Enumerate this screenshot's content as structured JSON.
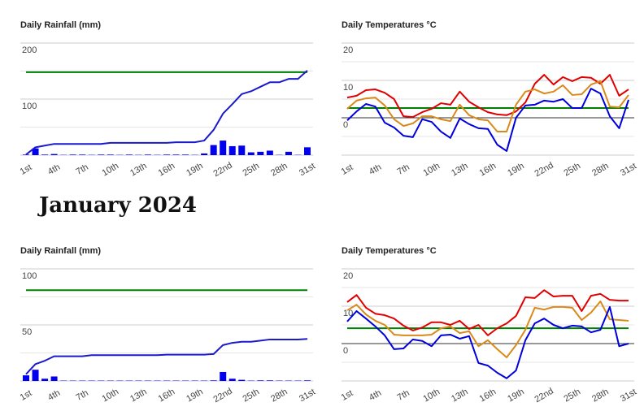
{
  "heading": "January 2024",
  "chart_data": [
    {
      "type": "bar-line",
      "title": "Daily Rainfall (mm)",
      "categories": [
        "1st",
        null,
        null,
        "4th",
        null,
        null,
        "7th",
        null,
        null,
        "10th",
        null,
        null,
        "13th",
        null,
        null,
        "16th",
        null,
        null,
        "19th",
        null,
        null,
        "22nd",
        null,
        null,
        "25th",
        null,
        null,
        "28th",
        null,
        null,
        "31st"
      ],
      "series": [
        {
          "type": "bar",
          "color": "#0000ee",
          "values": [
            1,
            12,
            1,
            2,
            0.5,
            1,
            1,
            0.5,
            1,
            1,
            0.5,
            1,
            0.5,
            1,
            0.5,
            1,
            1,
            1,
            0.5,
            3,
            18,
            26,
            16,
            17,
            5,
            6,
            8,
            0.5,
            6,
            0.5,
            14
          ]
        },
        {
          "type": "line",
          "color": "#1a1acc",
          "values": [
            1,
            14,
            17,
            20,
            20,
            20,
            20,
            20,
            20,
            22,
            22,
            22,
            22,
            22,
            22,
            22,
            23,
            23,
            23,
            26,
            45,
            74,
            91,
            109,
            114,
            122,
            130,
            130,
            136,
            136,
            151
          ]
        }
      ],
      "threshold": {
        "value": 148,
        "color": "#008000"
      },
      "ylim": [
        0,
        200
      ],
      "yticks": [
        100,
        200
      ],
      "minor_yticks": [
        50,
        150
      ],
      "grid": true
    },
    {
      "type": "line",
      "title": "Daily Temperatures °C",
      "categories": [
        "1st",
        null,
        null,
        "4th",
        null,
        null,
        "7th",
        null,
        null,
        "10th",
        null,
        null,
        "13th",
        null,
        null,
        "16th",
        null,
        null,
        "19th",
        null,
        null,
        "22nd",
        null,
        null,
        "25th",
        null,
        null,
        "28th",
        null,
        null,
        "31st"
      ],
      "series": [
        {
          "color": "#e00000",
          "values": [
            5.4,
            5.9,
            7.4,
            7.6,
            6.7,
            5.0,
            0.4,
            0.2,
            1.5,
            2.4,
            3.9,
            3.5,
            7.0,
            4.3,
            2.8,
            1.5,
            0.9,
            0.7,
            1.7,
            4.1,
            9.1,
            11.5,
            8.9,
            10.9,
            9.8,
            10.9,
            10.7,
            9.1,
            11.5,
            5.9,
            7.6
          ]
        },
        {
          "color": "#d98a1a",
          "values": [
            2.4,
            4.6,
            5.2,
            5.4,
            3.3,
            -0.4,
            -2.2,
            -1.5,
            0.4,
            0.4,
            -0.4,
            -0.9,
            3.5,
            0.7,
            -0.4,
            -0.7,
            -3.7,
            -3.7,
            3.5,
            7.0,
            7.6,
            6.5,
            7.0,
            8.7,
            6.1,
            6.3,
            8.9,
            9.8,
            3.0,
            2.8,
            6.1
          ]
        },
        {
          "color": "#0000dd",
          "values": [
            -0.7,
            1.7,
            3.7,
            3.0,
            -1.3,
            -2.6,
            -4.8,
            -5.2,
            -0.4,
            -1.1,
            -3.7,
            -5.4,
            -0.2,
            -1.7,
            -2.8,
            -3.0,
            -7.2,
            -8.9,
            0,
            3.3,
            3.5,
            4.6,
            4.3,
            5.0,
            2.6,
            2.6,
            7.8,
            6.5,
            0.4,
            -2.8,
            4.8
          ]
        }
      ],
      "threshold": {
        "value": 2.6,
        "color": "#008000"
      },
      "ylim": [
        -10,
        20
      ],
      "yticks": [
        0,
        10,
        20
      ],
      "minor_yticks": [
        -5,
        5,
        15
      ],
      "grid": true
    },
    {
      "type": "bar-line",
      "title": "Daily Rainfall (mm)",
      "categories": [
        "1st",
        null,
        null,
        "4th",
        null,
        null,
        "7th",
        null,
        null,
        "10th",
        null,
        null,
        "13th",
        null,
        null,
        "16th",
        null,
        null,
        "19th",
        null,
        null,
        "22nd",
        null,
        null,
        "25th",
        null,
        null,
        "28th",
        null,
        null,
        "31st"
      ],
      "series": [
        {
          "type": "bar",
          "color": "#0000ee",
          "values": [
            5,
            10,
            2,
            4,
            0.3,
            0.3,
            0.3,
            0.3,
            0.3,
            0.3,
            0.3,
            0.3,
            0.3,
            0.3,
            0.3,
            0.3,
            0.3,
            0.3,
            0.3,
            0.3,
            0.5,
            8,
            2,
            1,
            0.3,
            0.5,
            0.5,
            0.3,
            0.3,
            0.3,
            0.5
          ]
        },
        {
          "type": "line",
          "color": "#1a1acc",
          "values": [
            6,
            15,
            18,
            22,
            22,
            22,
            22,
            23,
            23,
            23,
            23,
            23,
            23,
            23,
            23,
            23.5,
            23.5,
            23.5,
            23.5,
            23.5,
            24,
            32,
            34,
            35,
            35,
            36,
            37,
            37,
            37,
            37,
            37.5
          ]
        }
      ],
      "threshold": {
        "value": 81,
        "color": "#008000"
      },
      "ylim": [
        0,
        100
      ],
      "yticks": [
        50,
        100
      ],
      "minor_yticks": [
        25,
        75
      ],
      "grid": true
    },
    {
      "type": "line",
      "title": "Daily Temperatures °C",
      "categories": [
        "1st",
        null,
        null,
        "4th",
        null,
        null,
        "7th",
        null,
        null,
        "10th",
        null,
        null,
        "13th",
        null,
        null,
        "16th",
        null,
        null,
        "19th",
        null,
        null,
        "22nd",
        null,
        null,
        "25th",
        null,
        null,
        "28th",
        null,
        null,
        "31st"
      ],
      "series": [
        {
          "color": "#e00000",
          "values": [
            11.1,
            13.0,
            9.6,
            8.0,
            7.6,
            6.7,
            4.8,
            3.5,
            4.3,
            5.7,
            5.7,
            5.0,
            6.1,
            3.9,
            5.0,
            2.2,
            4.1,
            5.4,
            7.4,
            12.4,
            12.2,
            14.3,
            12.6,
            12.8,
            12.8,
            8.7,
            12.8,
            13.3,
            11.7,
            11.5,
            11.5
          ]
        },
        {
          "color": "#d98a1a",
          "values": [
            8.9,
            10.4,
            7.8,
            6.1,
            5.0,
            2.4,
            2.2,
            2.2,
            2.2,
            2.4,
            4.1,
            4.6,
            2.8,
            3.3,
            -0.7,
            0.9,
            -1.5,
            -3.7,
            -0.4,
            3.7,
            9.6,
            9.1,
            9.8,
            9.8,
            9.6,
            6.3,
            8.3,
            11.3,
            6.5,
            6.3,
            6.1
          ]
        },
        {
          "color": "#0000dd",
          "values": [
            5.9,
            8.7,
            6.7,
            4.6,
            2.2,
            -1.5,
            -1.3,
            1.1,
            0.7,
            -0.7,
            2.2,
            2.4,
            1.3,
            2.0,
            -5.2,
            -5.9,
            -7.8,
            -9.3,
            -7.2,
            0.9,
            5.4,
            6.7,
            5.0,
            4.1,
            4.8,
            4.6,
            3.0,
            3.7,
            9.8,
            -0.7,
            0
          ]
        }
      ],
      "threshold": {
        "value": 4.1,
        "color": "#008000"
      },
      "ylim": [
        -10,
        20
      ],
      "yticks": [
        0,
        10,
        20
      ],
      "minor_yticks": [
        -5,
        5,
        15
      ],
      "grid": true
    }
  ]
}
